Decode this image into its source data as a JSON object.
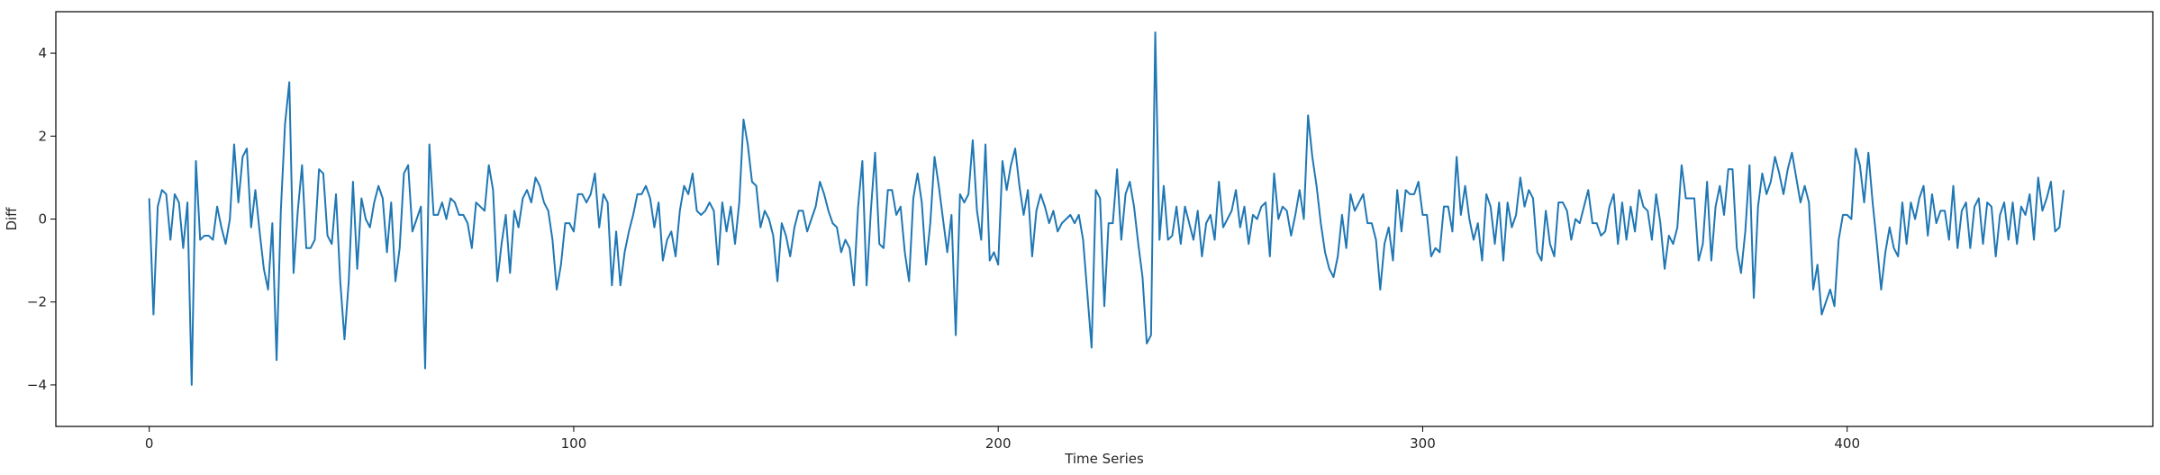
{
  "chart_data": {
    "type": "line",
    "title": "",
    "xlabel": "Time Series",
    "ylabel": "Diff",
    "xlim": [
      -22,
      472
    ],
    "ylim": [
      -5,
      5
    ],
    "x_ticks": [
      0,
      100,
      200,
      300,
      400
    ],
    "y_ticks": [
      -4,
      -2,
      0,
      2,
      4
    ],
    "grid": false,
    "color": "#1f77b4",
    "series": [
      {
        "x_start": 0,
        "x_step": 1,
        "values": [
          0.5,
          -2.3,
          0.3,
          0.7,
          0.6,
          -0.5,
          0.6,
          0.4,
          -0.7,
          0.4,
          -4.0,
          1.4,
          -0.5,
          -0.4,
          -0.4,
          -0.5,
          0.3,
          -0.2,
          -0.6,
          0.0,
          1.8,
          0.4,
          1.5,
          1.7,
          -0.2,
          0.7,
          -0.3,
          -1.2,
          -1.7,
          -0.1,
          -3.4,
          0.2,
          2.3,
          3.3,
          -1.3,
          0.2,
          1.3,
          -0.7,
          -0.7,
          -0.5,
          1.2,
          1.1,
          -0.4,
          -0.6,
          0.6,
          -1.5,
          -2.9,
          -1.5,
          0.9,
          -1.2,
          0.5,
          0.0,
          -0.2,
          0.4,
          0.8,
          0.5,
          -0.8,
          0.4,
          -1.5,
          -0.7,
          1.1,
          1.3,
          -0.3,
          0.0,
          0.3,
          -3.6,
          1.8,
          0.1,
          0.1,
          0.4,
          0.0,
          0.5,
          0.4,
          0.1,
          0.1,
          -0.1,
          -0.7,
          0.4,
          0.3,
          0.2,
          1.3,
          0.7,
          -1.5,
          -0.6,
          0.1,
          -1.3,
          0.2,
          -0.2,
          0.5,
          0.7,
          0.4,
          1.0,
          0.8,
          0.4,
          0.2,
          -0.5,
          -1.7,
          -1.1,
          -0.1,
          -0.1,
          -0.3,
          0.6,
          0.6,
          0.4,
          0.6,
          1.1,
          -0.2,
          0.6,
          0.4,
          -1.6,
          -0.3,
          -1.6,
          -0.8,
          -0.3,
          0.1,
          0.6,
          0.6,
          0.8,
          0.5,
          -0.2,
          0.4,
          -1.0,
          -0.5,
          -0.3,
          -0.9,
          0.2,
          0.8,
          0.6,
          1.1,
          0.2,
          0.1,
          0.2,
          0.4,
          0.2,
          -1.1,
          0.4,
          -0.3,
          0.3,
          -0.6,
          0.4,
          2.4,
          1.8,
          0.9,
          0.8,
          -0.2,
          0.2,
          0.0,
          -0.4,
          -1.5,
          -0.1,
          -0.4,
          -0.9,
          -0.2,
          0.2,
          0.2,
          -0.3,
          0.0,
          0.3,
          0.9,
          0.6,
          0.2,
          -0.1,
          -0.2,
          -0.8,
          -0.5,
          -0.7,
          -1.6,
          0.3,
          1.4,
          -1.6,
          0.2,
          1.6,
          -0.6,
          -0.7,
          0.7,
          0.7,
          0.1,
          0.3,
          -0.8,
          -1.5,
          0.5,
          1.1,
          0.4,
          -1.1,
          -0.1,
          1.5,
          0.8,
          0.0,
          -0.8,
          0.1,
          -2.8,
          0.6,
          0.4,
          0.6,
          1.9,
          0.2,
          -0.5,
          1.8,
          -1.0,
          -0.8,
          -1.1,
          1.4,
          0.7,
          1.3,
          1.7,
          0.8,
          0.1,
          0.7,
          -0.9,
          0.2,
          0.6,
          0.3,
          -0.1,
          0.2,
          -0.3,
          -0.1,
          0.0,
          0.1,
          -0.1,
          0.1,
          -0.5,
          -1.8,
          -3.1,
          0.7,
          0.5,
          -2.1,
          -0.1,
          -0.1,
          1.2,
          -0.5,
          0.6,
          0.9,
          0.3,
          -0.6,
          -1.4,
          -3.0,
          -2.8,
          4.5,
          -0.5,
          0.8,
          -0.5,
          -0.4,
          0.3,
          -0.6,
          0.3,
          -0.1,
          -0.5,
          0.2,
          -0.9,
          -0.1,
          0.1,
          -0.5,
          0.9,
          -0.2,
          0.0,
          0.2,
          0.7,
          -0.2,
          0.3,
          -0.6,
          0.1,
          0.0,
          0.3,
          0.4,
          -0.9,
          1.1,
          0.0,
          0.3,
          0.2,
          -0.4,
          0.1,
          0.7,
          0.0,
          2.5,
          1.5,
          0.8,
          -0.1,
          -0.8,
          -1.2,
          -1.4,
          -0.9,
          0.1,
          -0.7,
          0.6,
          0.2,
          0.4,
          0.6,
          -0.1,
          -0.1,
          -0.5,
          -1.7,
          -0.6,
          -0.2,
          -1.0,
          0.7,
          -0.3,
          0.7,
          0.6,
          0.6,
          0.9,
          0.1,
          0.1,
          -0.9,
          -0.7,
          -0.8,
          0.3,
          0.3,
          -0.3,
          1.5,
          0.1,
          0.8,
          0.0,
          -0.5,
          -0.1,
          -1.0,
          0.6,
          0.3,
          -0.6,
          0.4,
          -1.0,
          0.4,
          -0.2,
          0.1,
          1.0,
          0.3,
          0.7,
          0.5,
          -0.8,
          -1.0,
          0.2,
          -0.6,
          -0.9,
          0.4,
          0.4,
          0.2,
          -0.5,
          0.0,
          -0.1,
          0.3,
          0.7,
          -0.1,
          -0.1,
          -0.4,
          -0.3,
          0.3,
          0.6,
          -0.6,
          0.4,
          -0.5,
          0.3,
          -0.3,
          0.7,
          0.3,
          0.2,
          -0.5,
          0.6,
          -0.1,
          -1.2,
          -0.4,
          -0.6,
          -0.2,
          1.3,
          0.5,
          0.5,
          0.5,
          -1.0,
          -0.6,
          0.9,
          -1.0,
          0.3,
          0.8,
          0.1,
          1.2,
          1.2,
          -0.7,
          -1.3,
          -0.3,
          1.3,
          -1.9,
          0.3,
          1.1,
          0.6,
          0.9,
          1.5,
          1.1,
          0.6,
          1.2,
          1.6,
          1.0,
          0.4,
          0.8,
          0.4,
          -1.7,
          -1.1,
          -2.3,
          -2.0,
          -1.7,
          -2.1,
          -0.5,
          0.1,
          0.1,
          0.0,
          1.7,
          1.3,
          0.4,
          1.6,
          0.4,
          -0.6,
          -1.7,
          -0.8,
          -0.2,
          -0.7,
          -0.9,
          0.4,
          -0.6,
          0.4,
          0.0,
          0.5,
          0.8,
          -0.4,
          0.6,
          -0.1,
          0.2,
          0.2,
          -0.5,
          0.8,
          -0.7,
          0.2,
          0.4,
          -0.7,
          0.3,
          0.5,
          -0.6,
          0.4,
          0.3,
          -0.9,
          0.1,
          0.4,
          -0.5,
          0.4,
          -0.6,
          0.3,
          0.1,
          0.6,
          -0.5,
          1.0,
          0.2,
          0.5,
          0.9,
          -0.3,
          -0.2,
          0.7
        ]
      }
    ]
  }
}
